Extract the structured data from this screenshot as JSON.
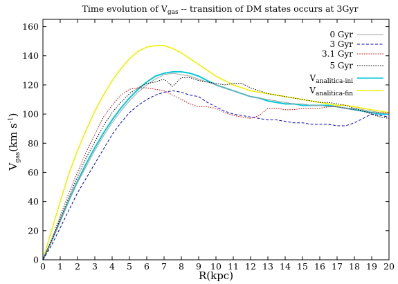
{
  "chart_data": {
    "type": "line",
    "title": {
      "main": "Time evolution of V",
      "sub": "gas",
      "rest": " -- transition of DM states occurs at 3Gyr"
    },
    "xlabel": "R(kpc)",
    "ylabel": {
      "main": "V",
      "sub": "gas",
      "rest": "(km s",
      "sup": "-1",
      "end": ")"
    },
    "xlim": [
      0,
      20
    ],
    "ylim": [
      0,
      165
    ],
    "xticks": [
      "0",
      "1",
      "2",
      "3",
      "4",
      "5",
      "6",
      "7",
      "8",
      "9",
      "10",
      "11",
      "12",
      "13",
      "14",
      "15",
      "16",
      "17",
      "18",
      "19",
      "20"
    ],
    "yticks": [
      "0",
      "20",
      "40",
      "60",
      "80",
      "100",
      "120",
      "140",
      "160"
    ],
    "legend_position": "top-right",
    "series": [
      {
        "name": "0 Gyr",
        "color": "#a0a0a0",
        "style": "solid",
        "x": [
          0,
          0.5,
          1,
          1.5,
          2,
          2.5,
          3,
          3.5,
          4,
          4.5,
          5,
          5.5,
          6,
          6.5,
          7,
          7.5,
          8,
          8.5,
          9,
          9.5,
          10,
          10.5,
          11,
          11.5,
          12,
          12.5,
          13,
          13.5,
          14,
          14.5,
          15,
          15.5,
          16,
          16.5,
          17,
          17.5,
          18,
          18.5,
          19,
          19.5,
          20
        ],
        "y": [
          0,
          12,
          26,
          40,
          53,
          64,
          75,
          85,
          94,
          102,
          109,
          115,
          120,
          124,
          127,
          128,
          127,
          126,
          124,
          122,
          120,
          118,
          116,
          114,
          112,
          111,
          110,
          109,
          108,
          107,
          107,
          106,
          106,
          105,
          105,
          104,
          104,
          103,
          102,
          101,
          100
        ]
      },
      {
        "name": "3 Gyr",
        "color": "#0000c0",
        "style": "dashed",
        "x": [
          0,
          0.5,
          1,
          1.5,
          2,
          2.5,
          3,
          3.5,
          4,
          4.5,
          5,
          5.5,
          6,
          6.5,
          7,
          7.5,
          8,
          8.5,
          9,
          9.5,
          10,
          10.5,
          11,
          11.5,
          12,
          12.5,
          13,
          13.5,
          14,
          14.5,
          15,
          15.5,
          16,
          16.5,
          17,
          17.5,
          18,
          18.5,
          19,
          19.5,
          20
        ],
        "y": [
          0,
          10,
          22,
          34,
          46,
          56,
          66,
          76,
          86,
          94,
          101,
          106,
          110,
          113,
          115,
          116,
          115,
          113,
          112,
          108,
          105,
          102,
          100,
          99,
          98,
          97,
          96,
          96,
          95,
          94,
          94,
          93,
          93,
          93,
          92,
          92,
          94,
          97,
          100,
          99,
          98
        ]
      },
      {
        "name": "3.1 Gyr",
        "color": "#d00000",
        "style": "dotted",
        "x": [
          0,
          0.5,
          1,
          1.5,
          2,
          2.5,
          3,
          3.5,
          4,
          4.5,
          5,
          5.5,
          6,
          6.5,
          7,
          7.5,
          8,
          8.5,
          9,
          9.5,
          10,
          10.5,
          11,
          11.5,
          12,
          12.5,
          13,
          13.5,
          14,
          14.5,
          15,
          15.5,
          16,
          16.5,
          17,
          17.5,
          18,
          18.5,
          19,
          19.5,
          20
        ],
        "y": [
          0,
          14,
          30,
          46,
          60,
          74,
          86,
          98,
          106,
          113,
          117,
          118,
          118,
          117,
          116,
          113,
          110,
          107,
          105,
          105,
          104,
          101,
          99,
          98,
          97,
          99,
          104,
          104,
          103,
          103,
          104,
          104,
          104,
          105,
          105,
          104,
          103,
          102,
          101,
          101,
          101
        ]
      },
      {
        "name": "5 Gyr",
        "color": "#000000",
        "style": "dotted",
        "x": [
          0,
          0.5,
          1,
          1.5,
          2,
          2.5,
          3,
          3.5,
          4,
          4.5,
          5,
          5.5,
          6,
          6.5,
          7,
          7.5,
          8,
          8.5,
          9,
          9.5,
          10,
          10.5,
          11,
          11.5,
          12,
          12.5,
          13,
          13.5,
          14,
          14.5,
          15,
          15.5,
          16,
          16.5,
          17,
          17.5,
          18,
          18.5,
          19,
          19.5,
          20
        ],
        "y": [
          0,
          13,
          28,
          43,
          57,
          70,
          81,
          92,
          101,
          108,
          114,
          118,
          121,
          122,
          124,
          119,
          125,
          125,
          123,
          122,
          121,
          120,
          121,
          121,
          118,
          116,
          114,
          113,
          112,
          111,
          110,
          109,
          108,
          108,
          107,
          106,
          104,
          102,
          100,
          98,
          97
        ]
      },
      {
        "name": "V",
        "sub": "analitica-ini",
        "color": "#00c8d8",
        "style": "solid",
        "width": 2,
        "x": [
          0,
          0.5,
          1,
          1.5,
          2,
          2.5,
          3,
          3.5,
          4,
          4.5,
          5,
          5.5,
          6,
          6.5,
          7,
          7.5,
          8,
          8.5,
          9,
          9.5,
          10,
          10.5,
          11,
          11.5,
          12,
          12.5,
          13,
          13.5,
          14,
          14.5,
          15,
          15.5,
          16,
          16.5,
          17,
          17.5,
          18,
          18.5,
          19,
          19.5,
          20
        ],
        "y": [
          0,
          13,
          27,
          41,
          54,
          66,
          77,
          87,
          96,
          104,
          111,
          117,
          122,
          126,
          128,
          129,
          129,
          128,
          126,
          123,
          120,
          118,
          116,
          114,
          112,
          111,
          109,
          108,
          107,
          107,
          106,
          106,
          106,
          106,
          105,
          104,
          103,
          102,
          101,
          100,
          100
        ]
      },
      {
        "name": "V",
        "sub": "analitica-fin",
        "color": "#f0f000",
        "style": "solid",
        "width": 1.6,
        "x": [
          0,
          0.5,
          1,
          1.5,
          2,
          2.5,
          3,
          3.5,
          4,
          4.5,
          5,
          5.5,
          6,
          6.5,
          7,
          7.5,
          8,
          8.5,
          9,
          9.5,
          10,
          10.5,
          11,
          11.5,
          12,
          12.5,
          13,
          13.5,
          14,
          14.5,
          15,
          15.5,
          16,
          16.5,
          17,
          17.5,
          18,
          18.5,
          19,
          19.5,
          20
        ],
        "y": [
          0,
          20,
          40,
          59,
          75,
          89,
          102,
          113,
          123,
          131,
          138,
          143,
          146,
          147,
          147,
          145,
          142,
          138,
          134,
          130,
          126,
          123,
          120,
          118,
          116,
          115,
          114,
          113,
          112,
          111,
          110,
          109,
          108,
          107,
          106,
          106,
          105,
          104,
          103,
          102,
          101
        ]
      }
    ]
  }
}
